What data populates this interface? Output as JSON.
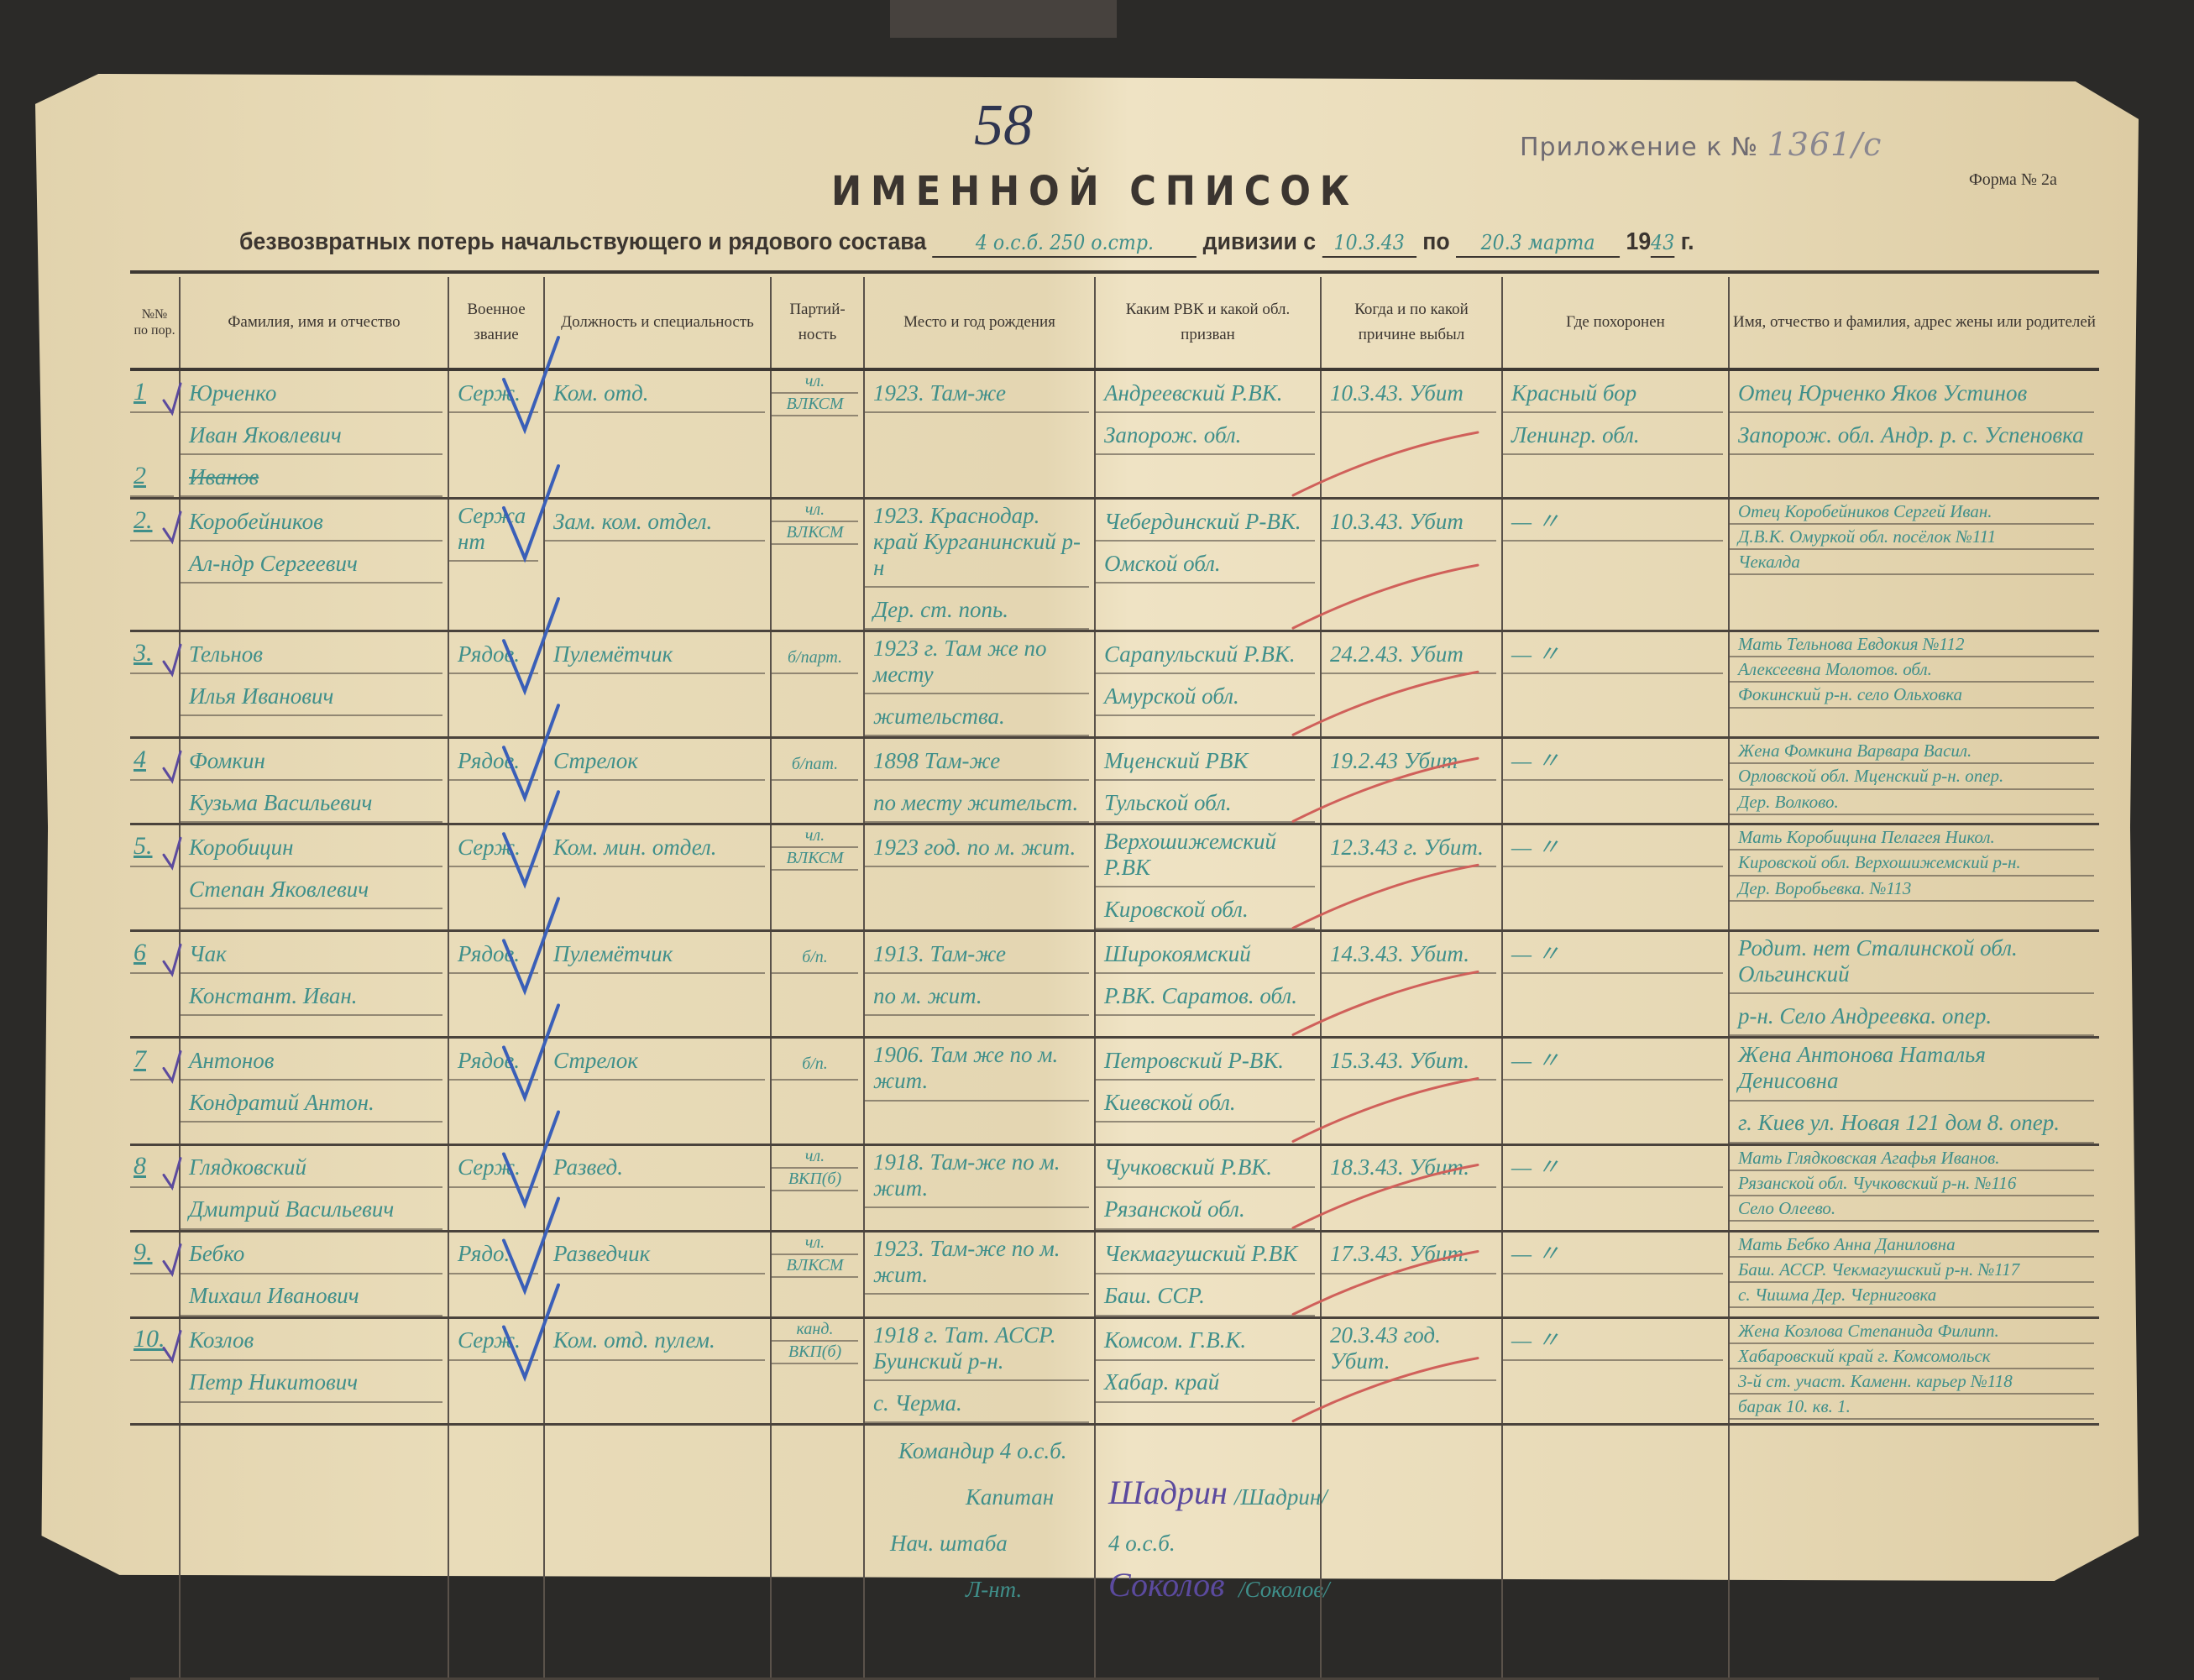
{
  "folio_number": "58",
  "stamp": {
    "label": "Приложение к №",
    "number": "1361/с"
  },
  "form_label": "Форма № 2а",
  "title": "ИМЕННОЙ СПИСОК",
  "subtitle": {
    "text_before": "безвозвратных потерь начальствующего и рядового состава",
    "unit_handwritten": "4 о.с.б. 250 о.стр.",
    "division_label": "дивизии с",
    "date_from": "10.3.43",
    "to_label": "по",
    "date_to": "20.3 марта",
    "year_prefix": "19",
    "year_handwritten": "43",
    "year_suffix": "г."
  },
  "columns": [
    "№№ по пор.",
    "Фамилия, имя и отчество",
    "Военное звание",
    "Должность и специальность",
    "Партий-ность",
    "Место и год рождения",
    "Каким РВК и какой обл. призван",
    "Когда и по какой причине выбыл",
    "Где похоронен",
    "Имя, отчество и фамилия, адрес жены или родителей"
  ],
  "rows": [
    {
      "num": "1",
      "name": [
        "Юрченко",
        "Иван Яковлевич",
        "Иванов"
      ],
      "struck_line": 2,
      "margin_mark": "2",
      "rank": "Серж.",
      "position": "Ком. отд.",
      "party": [
        "чл.",
        "ВЛКСМ"
      ],
      "birth": [
        "1923. Там-же"
      ],
      "rvk": [
        "Андреевский Р.ВК.",
        "Запорож. обл."
      ],
      "when": "10.3.43. Убит",
      "buried": [
        "Красный бор",
        "Ленингр. обл."
      ],
      "relatives": [
        "Отец Юрченко Яков Устинов",
        "Запорож. обл. Андр. р. с. Успеновка"
      ]
    },
    {
      "num": "2.",
      "name": [
        "Коробейников",
        "Ал-ндр Сергеевич"
      ],
      "rank": "Сержант",
      "position": "Зам. ком. отдел.",
      "party": [
        "чл.",
        "ВЛКСМ"
      ],
      "birth": [
        "1923. Краснодар. край Курганинский р-н",
        "Дер. ст. попь."
      ],
      "rvk": [
        "Чебердинский Р-ВК.",
        "Омской обл."
      ],
      "when": "10.3.43. Убит",
      "buried": [
        "—          〃"
      ],
      "relatives": [
        "Отец Коробейников Сергей Иван.",
        "Д.В.К. Омуркой обл. посёлок  №111",
        "Чекалда"
      ]
    },
    {
      "num": "3.",
      "name": [
        "Тельнов",
        "Илья Иванович"
      ],
      "rank": "Рядов.",
      "position": "Пулемётчик",
      "party": [
        "б/парт."
      ],
      "birth": [
        "1923 г. Там же по месту",
        "жительства."
      ],
      "rvk": [
        "Сарапульский Р.ВК.",
        "Амурской обл."
      ],
      "when": "24.2.43. Убит",
      "buried": [
        "—          〃"
      ],
      "relatives": [
        "Мать Тельнова Евдокия  №112",
        "Алексеевна Молотов. обл.",
        "Фокинский р-н. село Ольховка"
      ]
    },
    {
      "num": "4",
      "name": [
        "Фомкин",
        "Кузьма Васильевич"
      ],
      "rank": "Рядов.",
      "position": "Стрелок",
      "party": [
        "б/пат."
      ],
      "birth": [
        "1898 Там-же",
        "по месту жительст."
      ],
      "rvk": [
        "Мценский РВК",
        "Тульской обл."
      ],
      "when": "19.2.43 Убит",
      "buried": [
        "—          〃"
      ],
      "relatives": [
        "Жена Фомкина Варвара Васил.",
        "Орловской обл. Мценский р-н. опер.",
        "Дер. Волково."
      ]
    },
    {
      "num": "5.",
      "name": [
        "Коробицин",
        "Степан Яковлевич"
      ],
      "rank": "Серж.",
      "position": "Ком. мин. отдел.",
      "party": [
        "чл.",
        "ВЛКСМ"
      ],
      "birth": [
        "1923 год. по м. жит."
      ],
      "rvk": [
        "Верхошижемский Р.ВК",
        "Кировской обл."
      ],
      "when": "12.3.43 г. Убит.",
      "buried": [
        "—          〃"
      ],
      "relatives": [
        "Мать Коробицина Пелагея Никол.",
        "Кировской обл. Верхошижемский р-н.",
        "Дер. Воробьевка.  №113"
      ]
    },
    {
      "num": "6",
      "name": [
        "Чак",
        "Констант. Иван."
      ],
      "rank": "Рядов.",
      "position": "Пулемётчик",
      "party": [
        "б/п."
      ],
      "birth": [
        "1913. Там-же",
        "по м. жит."
      ],
      "rvk": [
        "Широкоямский",
        "Р.ВК. Саратов. обл."
      ],
      "when": "14.3.43. Убит.",
      "buried": [
        "—          〃"
      ],
      "relatives": [
        "Родит. нет Сталинской обл. Ольгинский",
        "р-н. Село Андреевка.  опер."
      ]
    },
    {
      "num": "7",
      "name": [
        "Антонов",
        "Кондратий Антон."
      ],
      "rank": "Рядов.",
      "position": "Стрелок",
      "party": [
        "б/п."
      ],
      "birth": [
        "1906. Там же по м. жит."
      ],
      "rvk": [
        "Петровский Р-ВК.",
        "Киевской обл."
      ],
      "when": "15.3.43. Убит.",
      "buried": [
        "—          〃"
      ],
      "relatives": [
        "Жена Антонова Наталья Денисовна",
        "г. Киев ул. Новая 121 дом 8. опер."
      ]
    },
    {
      "num": "8",
      "name": [
        "Глядковский",
        "Дмитрий Васильевич"
      ],
      "rank": "Серж.",
      "position": "Развед.",
      "party": [
        "чл.",
        "ВКП(б)"
      ],
      "birth": [
        "1918. Там-же по м. жит."
      ],
      "rvk": [
        "Чучковский Р.ВК.",
        "Рязанской обл."
      ],
      "when": "18.3.43. Убит.",
      "buried": [
        "—          〃"
      ],
      "relatives": [
        "Мать Глядковская Агафья Иванов.",
        "Рязанской обл. Чучковский р-н. №116",
        "Село Олеево."
      ]
    },
    {
      "num": "9.",
      "name": [
        "Бебко",
        "Михаил Иванович"
      ],
      "rank": "Рядо.",
      "position": "Разведчик",
      "party": [
        "чл.",
        "ВЛКСМ"
      ],
      "birth": [
        "1923. Там-же по м. жит."
      ],
      "rvk": [
        "Чекмагушский Р.ВК",
        "Баш. ССР."
      ],
      "when": "17.3.43. Убит.",
      "buried": [
        "—          〃"
      ],
      "relatives": [
        "Мать Бебко Анна Даниловна",
        "Баш. АССР. Чекмагушский р-н. №117",
        "с. Чишма Дер. Черниговка"
      ]
    },
    {
      "num": "10.",
      "name": [
        "Козлов",
        "Петр Никитович"
      ],
      "rank": "Серж.",
      "position": "Ком. отд. пулем.",
      "party": [
        "канд.",
        "ВКП(б)"
      ],
      "birth": [
        "1918 г. Тат. АССР. Буинский р-н.",
        "с. Черма."
      ],
      "rvk": [
        "Комсом. Г.В.К.",
        "Хабар. край"
      ],
      "when": "20.3.43 год. Убит.",
      "buried": [
        "—          〃"
      ],
      "relatives": [
        "Жена Козлова Степанида Филипп.",
        "Хабаровский край г. Комсомольск",
        "3-й ст. участ. Каменн. карьер  №118",
        "барак 10. кв. 1."
      ]
    }
  ],
  "signatures": {
    "commander_title": "Командир 4 о.с.б.",
    "commander_rank": "Капитан",
    "commander_signature": "Шадрин",
    "commander_name": "/Шадрин/",
    "chief_title": "Нач. штаба",
    "chief_unit": "4 о.с.б.",
    "chief_rank": "Л-нт.",
    "chief_signature": "Соколов",
    "chief_name": "/Соколов/"
  },
  "colors": {
    "paper": "#e6d8b4",
    "ink_teal": "#3f8f8a",
    "ink_blue_check": "#3a5fb8",
    "ink_red": "#d0605a",
    "ink_violet": "#5b4a9e",
    "print": "#3b3530"
  }
}
